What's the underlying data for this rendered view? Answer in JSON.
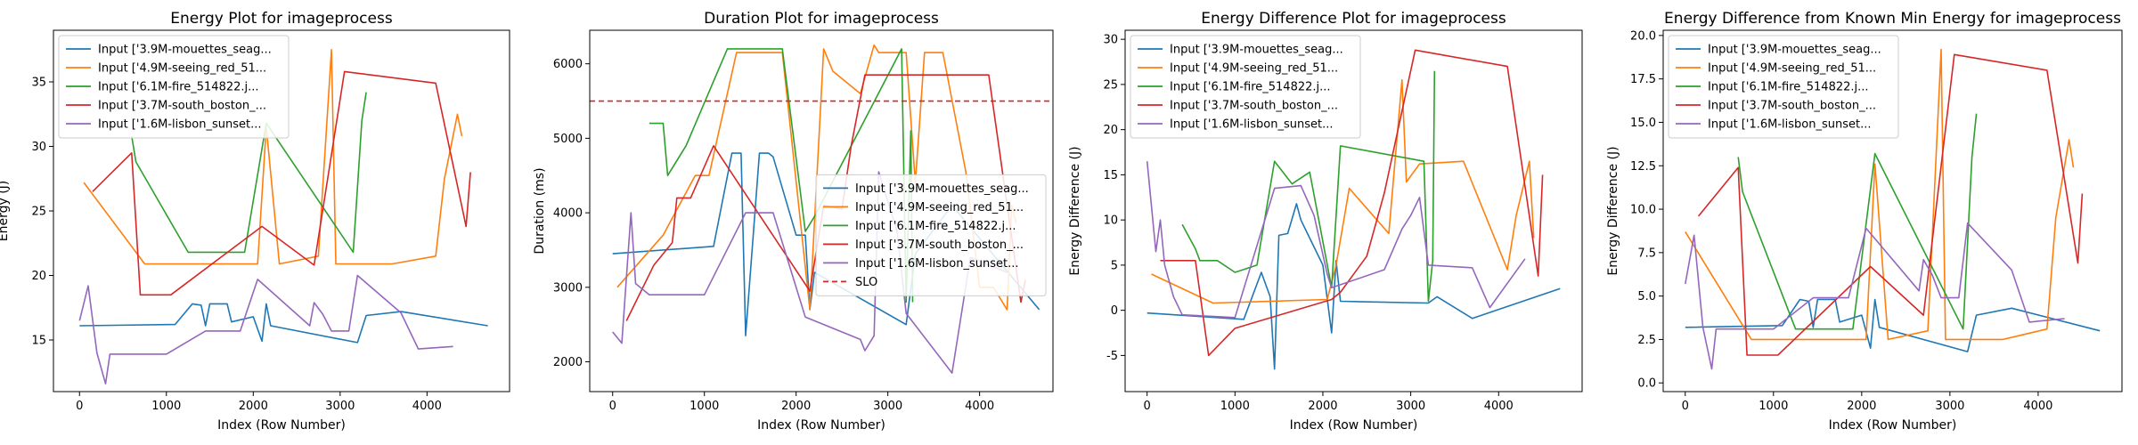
{
  "series_colors": [
    "#1f77b4",
    "#ff7f0e",
    "#2ca02c",
    "#d62728",
    "#9467bd"
  ],
  "slo_color": "#d62728",
  "chart_data": [
    {
      "type": "line",
      "title": "Energy Plot for imageprocess",
      "xlabel": "Index (Row Number)",
      "ylabel": "Energy (J)",
      "xlim": [
        -300,
        4950
      ],
      "ylim": [
        11,
        39
      ],
      "xticks": [
        0,
        1000,
        2000,
        3000,
        4000
      ],
      "yticks": [
        15,
        20,
        25,
        30,
        35
      ],
      "legend": "top-left",
      "series": [
        {
          "name": "Input ['3.9M-mouettes_seag...",
          "x": [
            0,
            1100,
            1300,
            1400,
            1450,
            1500,
            1600,
            1700,
            1750,
            2000,
            2100,
            2150,
            2200,
            3200,
            3300,
            3700,
            4700
          ],
          "y": [
            16.1,
            16.2,
            17.8,
            17.7,
            16.1,
            17.8,
            17.8,
            17.8,
            16.4,
            16.8,
            14.9,
            17.8,
            16.1,
            14.8,
            16.9,
            17.2,
            16.1
          ]
        },
        {
          "name": "Input ['4.9M-seeing_red_51...",
          "x": [
            50,
            750,
            2050,
            2150,
            2300,
            2750,
            2900,
            2950,
            3100,
            3600,
            4100,
            4200,
            4350,
            4400
          ],
          "y": [
            27.2,
            20.9,
            20.9,
            31.5,
            20.9,
            21.5,
            37.5,
            20.9,
            20.9,
            20.9,
            21.5,
            27.5,
            32.5,
            30.8
          ]
        },
        {
          "name": "Input ['6.1M-fire_514822.j...",
          "x": [
            600,
            650,
            1250,
            1900,
            2150,
            3150,
            3250,
            3300
          ],
          "y": [
            30.8,
            28.8,
            21.8,
            21.8,
            31.8,
            21.8,
            32.0,
            34.2
          ]
        },
        {
          "name": "Input ['3.7M-south_boston_...",
          "x": [
            150,
            600,
            700,
            1050,
            2100,
            2700,
            3050,
            4100,
            4450,
            4500
          ],
          "y": [
            26.5,
            29.5,
            18.5,
            18.5,
            23.8,
            20.8,
            35.8,
            34.9,
            23.8,
            28.0
          ]
        },
        {
          "name": "Input ['1.6M-lisbon_sunset...",
          "x": [
            0,
            100,
            200,
            300,
            350,
            1000,
            1450,
            1850,
            2050,
            2650,
            2700,
            2800,
            2900,
            3100,
            3200,
            3700,
            3900,
            4300
          ],
          "y": [
            16.5,
            19.2,
            14.0,
            11.6,
            13.9,
            13.9,
            15.7,
            15.7,
            19.7,
            16.1,
            17.9,
            17.0,
            15.7,
            15.7,
            20.0,
            17.1,
            14.3,
            14.5
          ]
        }
      ]
    },
    {
      "type": "line",
      "title": "Duration Plot for imageprocess",
      "xlabel": "Index (Row Number)",
      "ylabel": "Duration (ms)",
      "xlim": [
        -250,
        4800
      ],
      "ylim": [
        1600,
        6450
      ],
      "xticks": [
        0,
        1000,
        2000,
        3000,
        4000
      ],
      "yticks": [
        2000,
        3000,
        4000,
        5000,
        6000
      ],
      "legend": "center-right",
      "slo": 5500,
      "slo_label": "SLO",
      "series": [
        {
          "name": "Input ['3.9M-mouettes_seag...",
          "x": [
            0,
            1100,
            1300,
            1400,
            1450,
            1600,
            1700,
            1750,
            2000,
            2100,
            2150,
            2200,
            3200,
            3300,
            3700,
            4650
          ],
          "y": [
            3450,
            3550,
            4800,
            4800,
            2350,
            4800,
            4800,
            4750,
            3700,
            3700,
            2700,
            3200,
            2500,
            3450,
            4100,
            2700
          ]
        },
        {
          "name": "Input ['4.9M-seeing_red_51...",
          "x": [
            50,
            550,
            900,
            1050,
            1350,
            1850,
            2150,
            2300,
            2400,
            2700,
            2850,
            2900,
            2950,
            3200,
            3300,
            3400,
            3600,
            3850,
            4000,
            4150,
            4300,
            4350,
            4400
          ],
          "y": [
            3000,
            3700,
            4500,
            4500,
            6150,
            6150,
            2700,
            6200,
            5900,
            5600,
            6250,
            6150,
            6150,
            6150,
            4400,
            6150,
            6150,
            4550,
            3000,
            3000,
            2700,
            4100,
            3850
          ]
        },
        {
          "name": "Input ['6.1M-fire_514822.j...",
          "x": [
            400,
            550,
            600,
            800,
            1250,
            1850,
            2100,
            2200,
            3150,
            3200,
            3250,
            3270
          ],
          "y": [
            5200,
            5200,
            4500,
            4900,
            6200,
            6200,
            3750,
            3950,
            6200,
            2800,
            5100,
            2800
          ]
        },
        {
          "name": "Input ['3.7M-south_boston_...",
          "x": [
            150,
            450,
            650,
            700,
            850,
            1100,
            2150,
            2300,
            2500,
            2600,
            2750,
            4100,
            4450,
            4500
          ],
          "y": [
            2550,
            3300,
            3600,
            4200,
            4200,
            4900,
            2950,
            4100,
            4050,
            4900,
            5850,
            5850,
            2800,
            3100
          ]
        },
        {
          "name": "Input ['1.6M-lisbon_sunset...",
          "x": [
            0,
            100,
            200,
            250,
            400,
            1000,
            1450,
            1750,
            2100,
            2700,
            2750,
            2850,
            2900,
            3100,
            3200,
            3700,
            3900,
            4300
          ],
          "y": [
            2400,
            2250,
            4000,
            3050,
            2900,
            2900,
            4000,
            4000,
            2600,
            2300,
            2150,
            2350,
            4550,
            3750,
            2650,
            1850,
            3400,
            3200
          ]
        }
      ]
    },
    {
      "type": "line",
      "title": "Energy Difference Plot for imageprocess",
      "xlabel": "Index (Row Number)",
      "ylabel": "Energy Difference (J)",
      "xlim": [
        -250,
        4950
      ],
      "ylim": [
        -9,
        31
      ],
      "xticks": [
        0,
        1000,
        2000,
        3000,
        4000
      ],
      "yticks": [
        -5,
        0,
        5,
        10,
        15,
        20,
        25,
        30
      ],
      "legend": "top-left",
      "series": [
        {
          "name": "Input ['3.9M-mouettes_seag...",
          "x": [
            0,
            1100,
            1300,
            1400,
            1450,
            1500,
            1600,
            1700,
            1750,
            2000,
            2100,
            2150,
            2200,
            3200,
            3300,
            3700,
            4700
          ],
          "y": [
            -0.3,
            -1.0,
            4.2,
            1.5,
            -6.5,
            8.3,
            8.5,
            11.8,
            10.0,
            5.0,
            -2.5,
            5.5,
            1.0,
            0.8,
            1.5,
            -0.9,
            2.4
          ]
        },
        {
          "name": "Input ['4.9M-seeing_red_51...",
          "x": [
            50,
            750,
            2050,
            2150,
            2300,
            2750,
            2900,
            2950,
            3100,
            3600,
            4100,
            4200,
            4350,
            4400
          ],
          "y": [
            4.0,
            0.8,
            1.2,
            5.0,
            13.5,
            8.5,
            25.5,
            14.2,
            16.2,
            16.5,
            4.5,
            10.5,
            16.5,
            8.0
          ]
        },
        {
          "name": "Input ['6.1M-fire_514822.j...",
          "x": [
            400,
            550,
            600,
            800,
            1000,
            1250,
            1450,
            1650,
            1850,
            2100,
            2200,
            3150,
            3200,
            3250,
            3270
          ],
          "y": [
            9.5,
            6.8,
            5.5,
            5.5,
            4.2,
            5.0,
            16.5,
            14.0,
            15.3,
            2.5,
            18.2,
            16.5,
            1.0,
            5.5,
            26.5
          ]
        },
        {
          "name": "Input ['3.7M-south_boston_...",
          "x": [
            150,
            550,
            700,
            1000,
            2100,
            2200,
            2500,
            2700,
            3050,
            4100,
            4450,
            4500
          ],
          "y": [
            5.5,
            5.5,
            -5.0,
            -2.0,
            1.2,
            2.0,
            6.0,
            13.0,
            28.8,
            27.0,
            3.8,
            15.0
          ]
        },
        {
          "name": "Input ['1.6M-lisbon_sunset...",
          "x": [
            0,
            100,
            150,
            200,
            300,
            400,
            1000,
            1450,
            1750,
            1900,
            2050,
            2100,
            2700,
            2900,
            3000,
            3100,
            3200,
            3700,
            3900,
            4300
          ],
          "y": [
            16.5,
            6.5,
            10.0,
            5.0,
            1.5,
            -0.5,
            -0.8,
            13.5,
            13.8,
            10.5,
            4.0,
            2.5,
            4.5,
            9.0,
            10.5,
            12.5,
            5.0,
            4.7,
            0.3,
            5.7
          ]
        }
      ]
    },
    {
      "type": "line",
      "title": "Energy Difference from Known Min Energy for imageprocess",
      "xlabel": "Index (Row Number)",
      "ylabel": "Energy Difference (J)",
      "xlim": [
        -250,
        4950
      ],
      "ylim": [
        -0.5,
        20.3
      ],
      "xticks": [
        0,
        1000,
        2000,
        3000,
        4000
      ],
      "yticks": [
        0.0,
        2.5,
        5.0,
        7.5,
        10.0,
        12.5,
        15.0,
        17.5,
        20.0
      ],
      "legend": "top-left",
      "series": [
        {
          "name": "Input ['3.9M-mouettes_seag...",
          "x": [
            0,
            1100,
            1300,
            1400,
            1450,
            1500,
            1600,
            1700,
            1750,
            2000,
            2100,
            2150,
            2200,
            3200,
            3300,
            3700,
            4700
          ],
          "y": [
            3.2,
            3.3,
            4.8,
            4.7,
            3.2,
            4.8,
            4.8,
            4.8,
            3.5,
            3.9,
            2.0,
            4.8,
            3.2,
            1.8,
            3.9,
            4.3,
            3.0
          ]
        },
        {
          "name": "Input ['4.9M-seeing_red_51...",
          "x": [
            0,
            750,
            2050,
            2150,
            2300,
            2750,
            2900,
            2950,
            3100,
            3600,
            4100,
            4200,
            4350,
            4400
          ],
          "y": [
            8.7,
            2.5,
            2.5,
            12.6,
            2.5,
            3.0,
            19.2,
            2.5,
            2.5,
            2.5,
            3.1,
            9.5,
            14.0,
            12.4
          ]
        },
        {
          "name": "Input ['6.1M-fire_514822.j...",
          "x": [
            600,
            650,
            1250,
            1900,
            2150,
            3150,
            3250,
            3300
          ],
          "y": [
            13.0,
            11.0,
            3.1,
            3.1,
            13.2,
            3.1,
            13.0,
            15.5
          ]
        },
        {
          "name": "Input ['3.7M-south_boston_...",
          "x": [
            150,
            600,
            700,
            1050,
            2100,
            2700,
            3050,
            4100,
            4450,
            4500
          ],
          "y": [
            9.6,
            12.4,
            1.6,
            1.6,
            6.7,
            3.9,
            18.9,
            18.0,
            6.9,
            10.9
          ]
        },
        {
          "name": "Input ['1.6M-lisbon_sunset...",
          "x": [
            0,
            100,
            200,
            300,
            350,
            1000,
            1450,
            1850,
            2050,
            2650,
            2700,
            2800,
            2900,
            3100,
            3200,
            3700,
            3900,
            4300
          ],
          "y": [
            5.7,
            8.5,
            3.2,
            0.8,
            3.1,
            3.1,
            4.9,
            4.9,
            8.9,
            5.3,
            7.1,
            6.2,
            4.9,
            4.9,
            9.2,
            6.5,
            3.5,
            3.7
          ]
        }
      ]
    }
  ]
}
